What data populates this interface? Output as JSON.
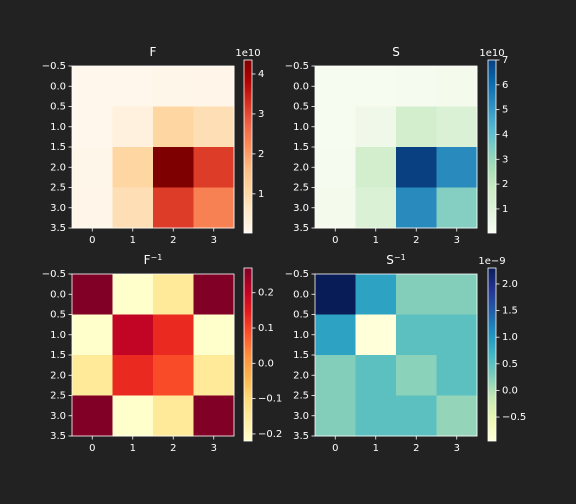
{
  "colors": {
    "background": "#222222",
    "foreground": "#ffffff"
  },
  "chart_data": [
    {
      "type": "heatmap",
      "title": "F",
      "colormap": "OrRd",
      "matrix": [
        [
          200000000.0,
          300000000.0,
          500000000.0,
          700000000.0
        ],
        [
          300000000.0,
          2500000000.0,
          10500000000.0,
          8000000000.0
        ],
        [
          500000000.0,
          10500000000.0,
          43500000000.0,
          31500000000.0
        ],
        [
          700000000.0,
          8000000000.0,
          31500000000.0,
          23500000000.0
        ]
      ],
      "xticks": [
        "0",
        "1",
        "2",
        "3"
      ],
      "yticks": [
        "−0.5",
        "0.0",
        "0.5",
        "1.0",
        "1.5",
        "2.0",
        "2.5",
        "3.0",
        "3.5"
      ],
      "colorbar": {
        "min": 200000000.0,
        "max": 43500000000.0,
        "ticks": [
          10000000000.0,
          20000000000.0,
          30000000000.0,
          40000000000.0
        ],
        "tick_labels": [
          "1",
          "2",
          "3",
          "4"
        ],
        "offset_label": "1e10"
      }
    },
    {
      "type": "heatmap",
      "title": "S",
      "colormap": "GnBu",
      "matrix": [
        [
          300000000.0,
          500000000.0,
          1000000000.0,
          1500000000.0
        ],
        [
          500000000.0,
          3000000000.0,
          14500000000.0,
          11500000000.0
        ],
        [
          1000000000.0,
          14500000000.0,
          70000000000.0,
          53000000000.0
        ],
        [
          1500000000.0,
          11500000000.0,
          53000000000.0,
          33500000000.0
        ]
      ],
      "xticks": [
        "0",
        "1",
        "2",
        "3"
      ],
      "yticks": [
        "−0.5",
        "0.0",
        "0.5",
        "1.0",
        "1.5",
        "2.0",
        "2.5",
        "3.0",
        "3.5"
      ],
      "colorbar": {
        "min": 300000000.0,
        "max": 70000000000.0,
        "ticks": [
          10000000000.0,
          20000000000.0,
          30000000000.0,
          40000000000.0,
          50000000000.0,
          60000000000.0,
          70000000000.0
        ],
        "tick_labels": [
          "1",
          "2",
          "3",
          "4",
          "5",
          "6",
          "7"
        ],
        "offset_label": "1e10"
      }
    },
    {
      "type": "heatmap",
      "title": "F",
      "title_sup": "−1",
      "colormap": "YlOrRd",
      "matrix": [
        [
          0.27,
          -0.22,
          -0.15,
          0.27
        ],
        [
          -0.22,
          0.2,
          0.13,
          -0.22
        ],
        [
          -0.15,
          0.13,
          0.09,
          -0.15
        ],
        [
          0.27,
          -0.22,
          -0.15,
          0.27
        ]
      ],
      "xticks": [
        "0",
        "1",
        "2",
        "3"
      ],
      "yticks": [
        "−0.5",
        "0.0",
        "0.5",
        "1.0",
        "1.5",
        "2.0",
        "2.5",
        "3.0",
        "3.5"
      ],
      "colorbar": {
        "min": -0.22,
        "max": 0.27,
        "ticks": [
          -0.2,
          -0.1,
          0,
          0.1,
          0.2
        ],
        "tick_labels": [
          "−0.2",
          "−0.1",
          "0.0",
          "0.1",
          "0.2"
        ],
        "offset_label": ""
      }
    },
    {
      "type": "heatmap",
      "title": "S",
      "title_sup": "−1",
      "colormap": "YlGnBu",
      "matrix": [
        [
          2.3e-09,
          9e-10,
          2.5e-10,
          2.5e-10
        ],
        [
          9e-10,
          -9.5e-10,
          5e-10,
          5e-10
        ],
        [
          2.5e-10,
          5e-10,
          2e-10,
          5e-10
        ],
        [
          2.5e-10,
          5e-10,
          5e-10,
          1.5e-10
        ]
      ],
      "xticks": [
        "0",
        "1",
        "2",
        "3"
      ],
      "yticks": [
        "−0.5",
        "0.0",
        "0.5",
        "1.0",
        "1.5",
        "2.0",
        "2.5",
        "3.0",
        "3.5"
      ],
      "colorbar": {
        "min": -9.5e-10,
        "max": 2.3e-09,
        "ticks": [
          -5e-10,
          0,
          5e-10,
          1e-09,
          1.5e-09,
          2e-09
        ],
        "tick_labels": [
          "−0.5",
          "0.0",
          "0.5",
          "1.0",
          "1.5",
          "2.0"
        ],
        "offset_label": "1e−9"
      }
    }
  ]
}
